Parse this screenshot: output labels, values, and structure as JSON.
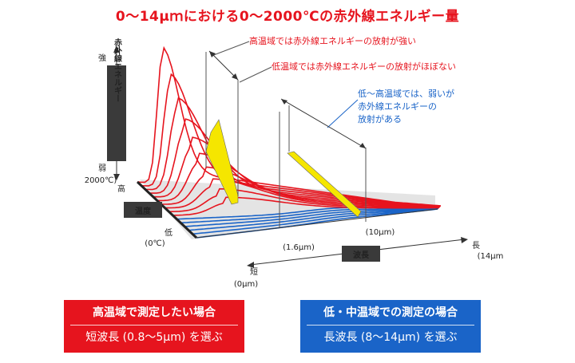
{
  "title": "0～14μｍにおける0～2000℃の赤外線エネルギー量",
  "y_axis": {
    "label": "赤外線エネルギー",
    "top": "強",
    "bottom": "弱"
  },
  "temperature_axis": {
    "label": "温度",
    "high": "高",
    "low": "低",
    "high_value": "2000℃)",
    "low_value": "(0℃)"
  },
  "wavelength_axis": {
    "label": "波長",
    "short": "短",
    "long": "長",
    "short_value": "(0μm)",
    "long_value": "(14μm",
    "mark1": "(1.6μm)",
    "mark2": "(10μm)"
  },
  "callouts": {
    "high": "高温域では赤外線エネルギーの放射が強い",
    "low": "低温域では赤外線エネルギーの放射がほぼない",
    "mid_1": "低～高温域では、弱いが",
    "mid_2": "赤外線エネルギーの",
    "mid_3": "放射がある"
  },
  "boxes": {
    "short": {
      "title": "高温域で測定したい場合",
      "subtitle": "短波長 (0.8～5μm) を選ぶ"
    },
    "long": {
      "title": "低・中温域での測定の場合",
      "subtitle": "長波長 (8～14μm) を選ぶ"
    }
  },
  "colors": {
    "red": "#e6141e",
    "blue": "#1a64c8",
    "yellow": "#f5e600",
    "dark": "#3a3a3a",
    "gray": "#dcdcdc"
  }
}
